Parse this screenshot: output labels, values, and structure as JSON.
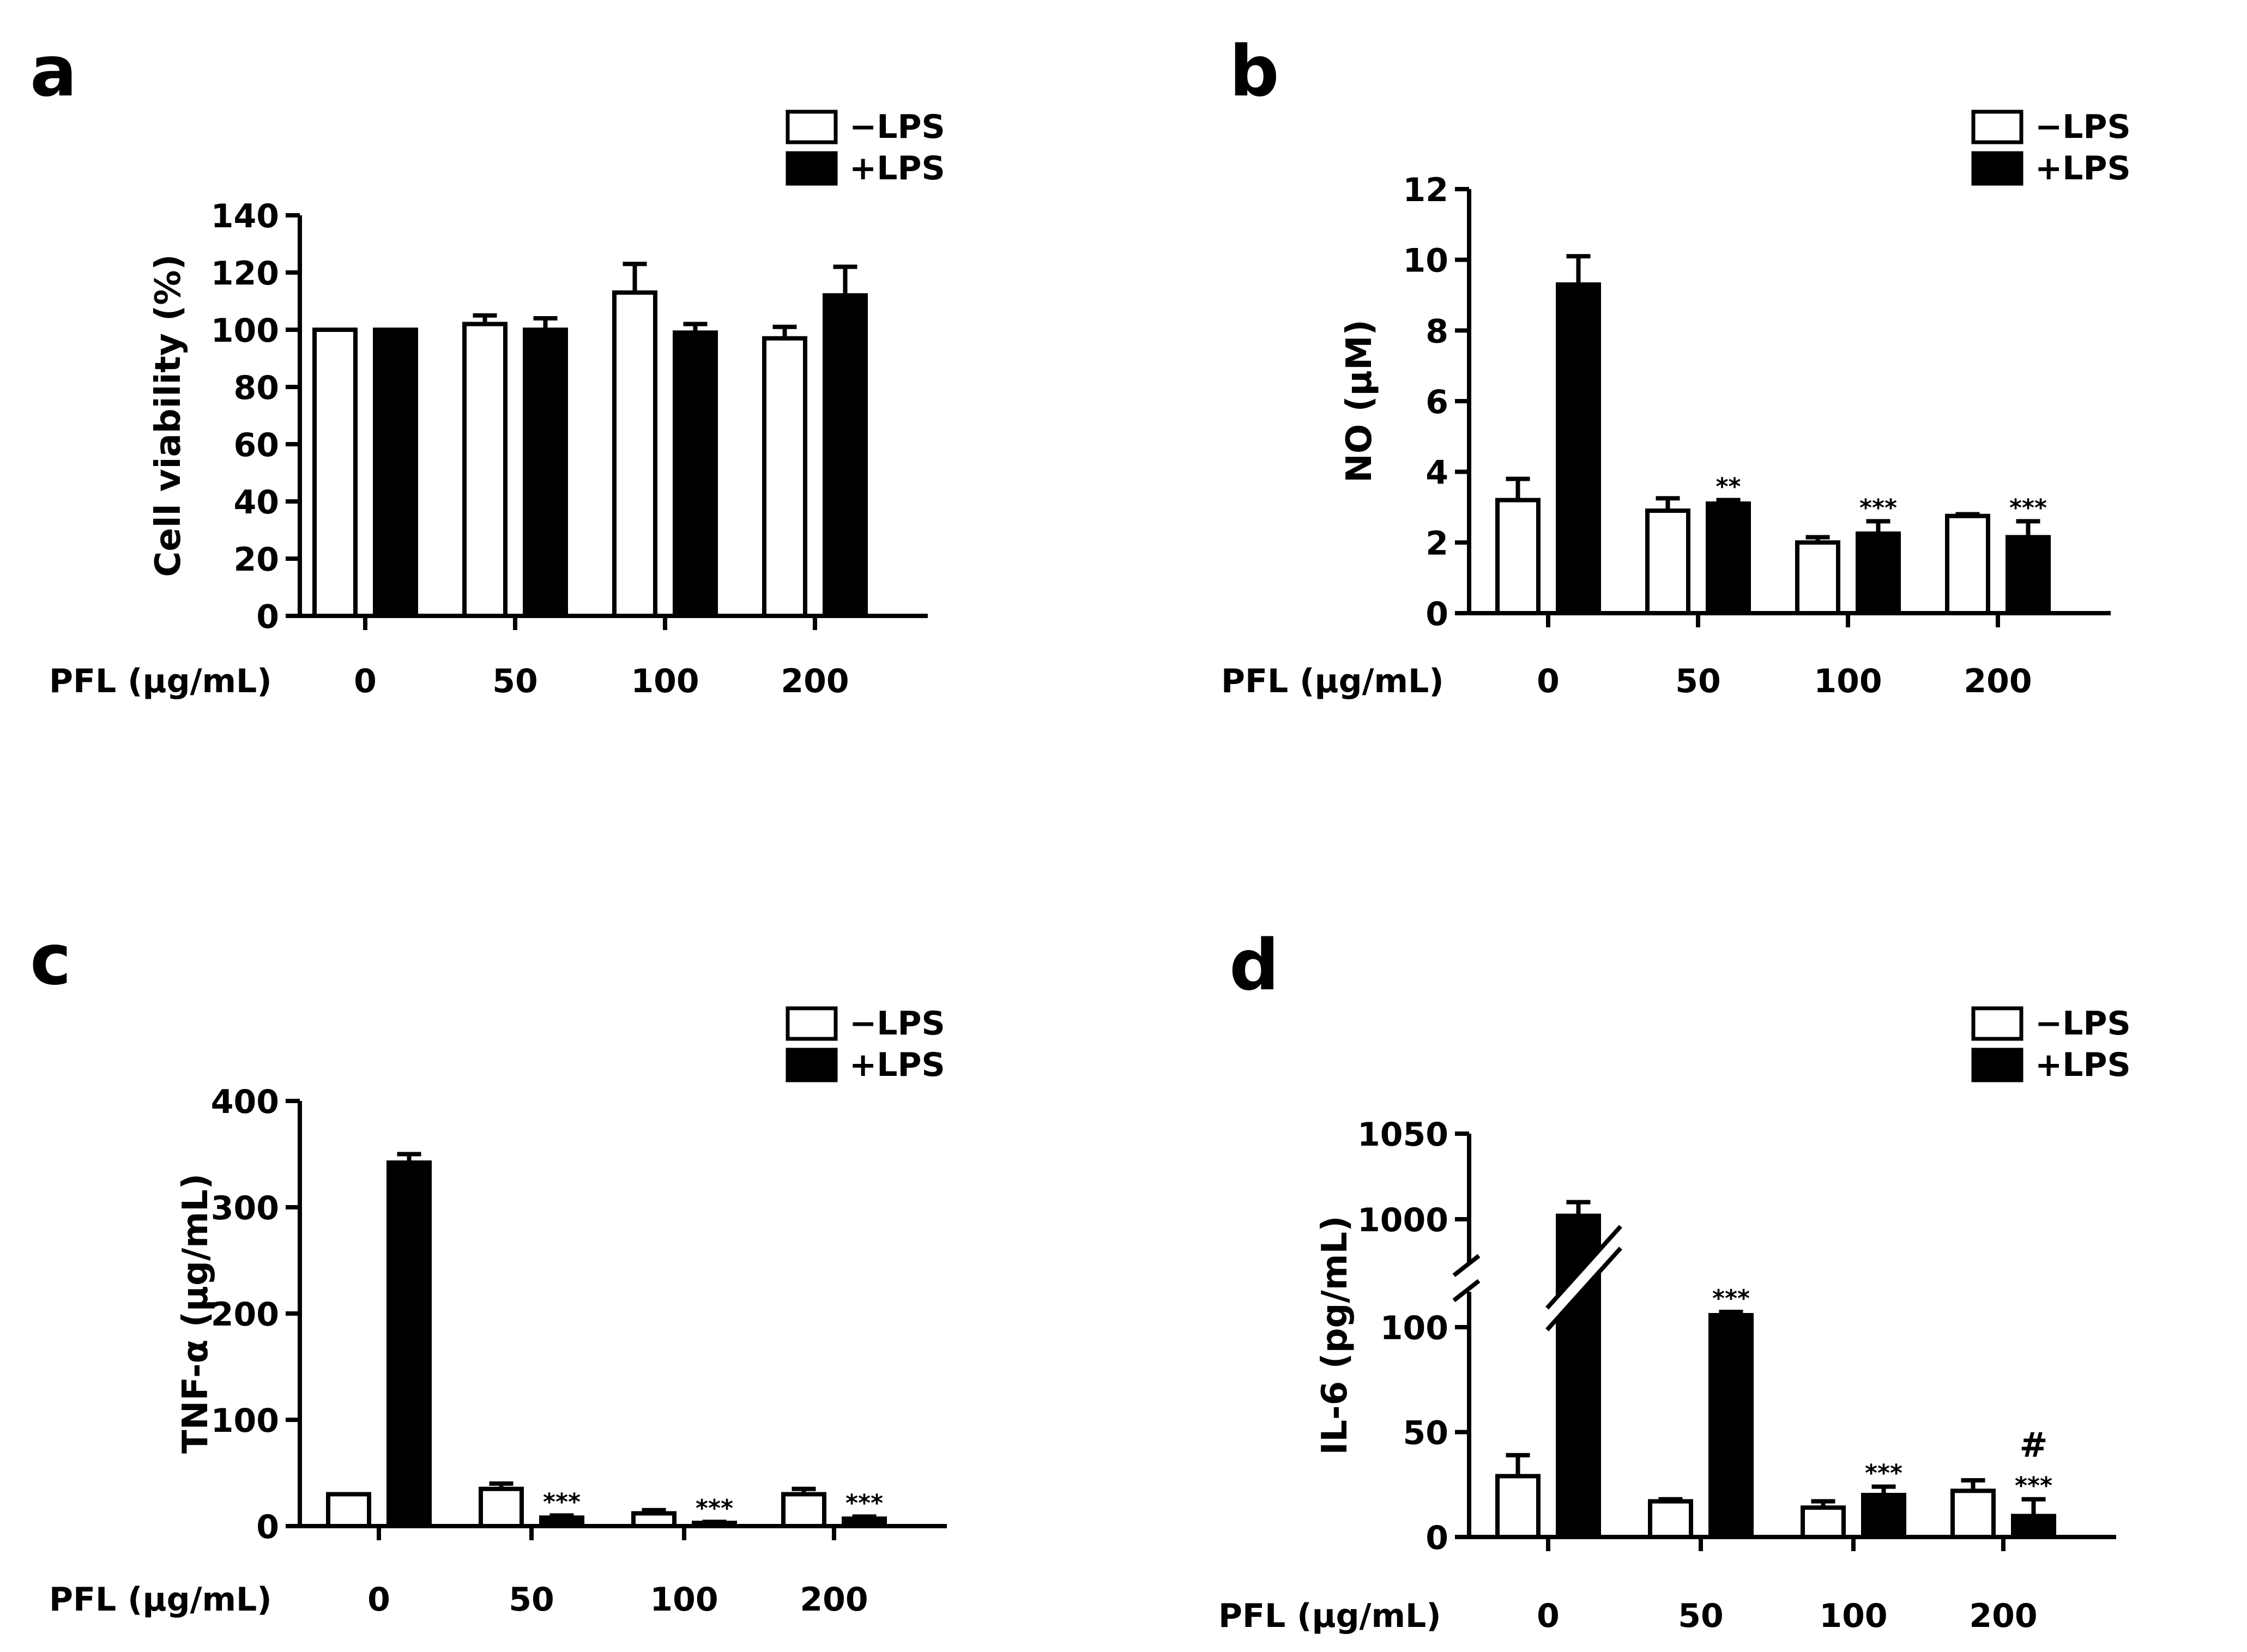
{
  "figure": {
    "legend_labels": [
      "−LPS",
      "+LPS"
    ],
    "x_axis_title": "PFL (μg/mL)"
  },
  "chart_data": [
    {
      "panel": "a",
      "type": "bar",
      "ylabel": "Cell viability (%)",
      "xlabel": "PFL (μg/mL)",
      "categories": [
        "0",
        "50",
        "100",
        "200"
      ],
      "ylim": [
        0,
        140
      ],
      "yticks": [
        0,
        20,
        40,
        60,
        80,
        100,
        120,
        140
      ],
      "legend": "top-right",
      "series": [
        {
          "name": "−LPS",
          "color": "#ffffff",
          "values": [
            100,
            102,
            113,
            97
          ],
          "errors": [
            0,
            3,
            10,
            4
          ]
        },
        {
          "name": "+LPS",
          "color": "#000000",
          "values": [
            100,
            100,
            99,
            112
          ],
          "errors": [
            0,
            4,
            3,
            10
          ]
        }
      ],
      "annotations": [
        [],
        [],
        [],
        []
      ]
    },
    {
      "panel": "b",
      "type": "bar",
      "ylabel": "NO (μM)",
      "xlabel": "PFL (μg/mL)",
      "categories": [
        "0",
        "50",
        "100",
        "200"
      ],
      "ylim": [
        0,
        12
      ],
      "yticks": [
        0,
        2,
        4,
        6,
        8,
        10,
        12
      ],
      "legend": "top-right",
      "series": [
        {
          "name": "−LPS",
          "color": "#ffffff",
          "values": [
            3.2,
            2.9,
            2.0,
            2.75
          ],
          "errors": [
            0.6,
            0.35,
            0.15,
            0.05
          ]
        },
        {
          "name": "+LPS",
          "color": "#000000",
          "values": [
            9.3,
            3.1,
            2.25,
            2.15
          ],
          "errors": [
            0.8,
            0.1,
            0.35,
            0.45
          ]
        }
      ],
      "annotations": [
        [],
        [
          "**"
        ],
        [
          "***"
        ],
        [
          "***"
        ]
      ]
    },
    {
      "panel": "c",
      "type": "bar",
      "ylabel": "TNF-α (μg/mL)",
      "xlabel": "PFL (μg/mL)",
      "categories": [
        "0",
        "50",
        "100",
        "200"
      ],
      "ylim": [
        0,
        400
      ],
      "yticks": [
        0,
        100,
        200,
        300,
        400
      ],
      "legend": "top-right",
      "series": [
        {
          "name": "−LPS",
          "color": "#ffffff",
          "values": [
            30,
            35,
            12,
            30
          ],
          "errors": [
            0,
            5,
            3,
            5
          ]
        },
        {
          "name": "+LPS",
          "color": "#000000",
          "values": [
            342,
            8,
            3,
            7
          ],
          "errors": [
            8,
            2,
            1,
            2
          ]
        }
      ],
      "annotations": [
        [],
        [
          "***"
        ],
        [
          "***"
        ],
        [
          "***"
        ]
      ]
    },
    {
      "panel": "d",
      "type": "bar",
      "ylabel": "IL-6 (pg/mL)",
      "xlabel": "PFL (μg/mL)",
      "categories": [
        "0",
        "50",
        "100",
        "200"
      ],
      "ylim": [
        0,
        1050
      ],
      "yticks": [
        0,
        50,
        100,
        1000,
        1050
      ],
      "axis_break": [
        120,
        980
      ],
      "legend": "top-right",
      "series": [
        {
          "name": "−LPS",
          "color": "#ffffff",
          "values": [
            29,
            17,
            14,
            22
          ],
          "errors": [
            10,
            1,
            3,
            5
          ]
        },
        {
          "name": "+LPS",
          "color": "#000000",
          "values": [
            1002,
            111,
            20,
            10
          ],
          "errors": [
            8,
            3,
            4,
            8
          ]
        }
      ],
      "annotations": [
        [],
        [
          "***"
        ],
        [
          "***"
        ],
        [
          "***",
          "#"
        ]
      ]
    }
  ]
}
